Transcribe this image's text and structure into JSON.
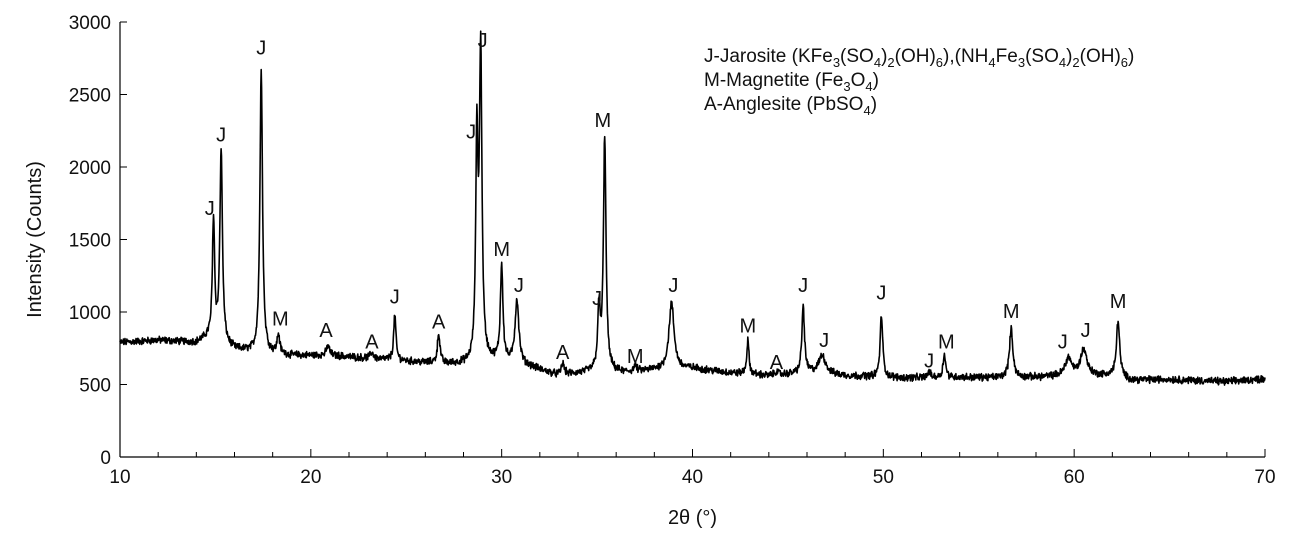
{
  "chart_data": {
    "type": "line",
    "xlabel": "2θ (°)",
    "ylabel": "Intensity (Counts)",
    "xlim": [
      10,
      70
    ],
    "ylim": [
      0,
      3000
    ],
    "x_ticks": [
      10,
      20,
      30,
      40,
      50,
      60,
      70
    ],
    "y_ticks": [
      0,
      500,
      1000,
      1500,
      2000,
      2500,
      3000
    ],
    "grid": false,
    "legend_position": "top-right",
    "line_color": "#000000",
    "legend": [
      {
        "runs": [
          [
            "J-Jarosite (KFe",
            "n"
          ],
          [
            "3",
            "sub"
          ],
          [
            "(SO",
            "n"
          ],
          [
            "4",
            "sub"
          ],
          [
            ")",
            "n"
          ],
          [
            "2",
            "sub"
          ],
          [
            "(OH)",
            "n"
          ],
          [
            "6",
            "sub"
          ],
          [
            "),(NH",
            "n"
          ],
          [
            "4",
            "sub"
          ],
          [
            "Fe",
            "n"
          ],
          [
            "3",
            "sub"
          ],
          [
            "(SO",
            "n"
          ],
          [
            "4",
            "sub"
          ],
          [
            ")",
            "n"
          ],
          [
            "2",
            "sub"
          ],
          [
            "(OH)",
            "n"
          ],
          [
            "6",
            "sub"
          ],
          [
            ")",
            "n"
          ]
        ]
      },
      {
        "runs": [
          [
            "M-Magnetite (Fe",
            "n"
          ],
          [
            "3",
            "sub"
          ],
          [
            "O",
            "n"
          ],
          [
            "4",
            "sub"
          ],
          [
            ")",
            "n"
          ]
        ]
      },
      {
        "runs": [
          [
            "A-Anglesite (PbSO",
            "n"
          ],
          [
            "4",
            "sub"
          ],
          [
            ")",
            "n"
          ]
        ]
      }
    ],
    "baseline": [
      [
        10,
        790
      ],
      [
        12,
        805
      ],
      [
        14,
        790
      ],
      [
        14.6,
        820
      ],
      [
        16,
        740
      ],
      [
        17,
        720
      ],
      [
        19,
        700
      ],
      [
        21,
        700
      ],
      [
        23,
        680
      ],
      [
        25,
        660
      ],
      [
        27,
        640
      ],
      [
        28.2,
        640
      ],
      [
        29.5,
        660
      ],
      [
        31.5,
        620
      ],
      [
        33,
        560
      ],
      [
        35,
        590
      ],
      [
        36.5,
        580
      ],
      [
        38,
        600
      ],
      [
        40,
        610
      ],
      [
        42,
        580
      ],
      [
        44,
        560
      ],
      [
        46,
        580
      ],
      [
        48,
        560
      ],
      [
        51,
        545
      ],
      [
        54,
        550
      ],
      [
        57,
        545
      ],
      [
        60,
        560
      ],
      [
        62,
        560
      ],
      [
        63,
        530
      ],
      [
        65,
        535
      ],
      [
        68,
        520
      ],
      [
        70,
        540
      ]
    ],
    "peaks": [
      {
        "x": 14.9,
        "y": 1630,
        "w": 0.07
      },
      {
        "x": 15.3,
        "y": 2110,
        "w": 0.08
      },
      {
        "x": 17.4,
        "y": 2680,
        "w": 0.08
      },
      {
        "x": 18.3,
        "y": 840,
        "w": 0.08
      },
      {
        "x": 20.9,
        "y": 770,
        "w": 0.09
      },
      {
        "x": 23.2,
        "y": 720,
        "w": 0.1
      },
      {
        "x": 24.4,
        "y": 980,
        "w": 0.07
      },
      {
        "x": 26.7,
        "y": 850,
        "w": 0.08
      },
      {
        "x": 28.7,
        "y": 2120,
        "w": 0.07
      },
      {
        "x": 28.9,
        "y": 2760,
        "w": 0.08
      },
      {
        "x": 30.0,
        "y": 1320,
        "w": 0.08
      },
      {
        "x": 30.8,
        "y": 1080,
        "w": 0.12
      },
      {
        "x": 33.2,
        "y": 640,
        "w": 0.1
      },
      {
        "x": 35.1,
        "y": 1000,
        "w": 0.08
      },
      {
        "x": 35.4,
        "y": 2200,
        "w": 0.08
      },
      {
        "x": 37.0,
        "y": 630,
        "w": 0.08
      },
      {
        "x": 38.9,
        "y": 1060,
        "w": 0.16
      },
      {
        "x": 42.9,
        "y": 800,
        "w": 0.07
      },
      {
        "x": 44.4,
        "y": 590,
        "w": 0.1
      },
      {
        "x": 45.8,
        "y": 1040,
        "w": 0.08
      },
      {
        "x": 46.8,
        "y": 700,
        "w": 0.22
      },
      {
        "x": 49.9,
        "y": 980,
        "w": 0.08
      },
      {
        "x": 52.4,
        "y": 590,
        "w": 0.08
      },
      {
        "x": 53.2,
        "y": 710,
        "w": 0.08
      },
      {
        "x": 56.7,
        "y": 880,
        "w": 0.11
      },
      {
        "x": 59.7,
        "y": 680,
        "w": 0.2
      },
      {
        "x": 60.5,
        "y": 740,
        "w": 0.2
      },
      {
        "x": 62.3,
        "y": 940,
        "w": 0.1
      }
    ],
    "annotations": [
      {
        "text": "J",
        "x": 14.7,
        "y": 1640
      },
      {
        "text": "J",
        "x": 15.3,
        "y": 2150
      },
      {
        "text": "J",
        "x": 17.4,
        "y": 2750
      },
      {
        "text": "M",
        "x": 18.4,
        "y": 880
      },
      {
        "text": "A",
        "x": 20.8,
        "y": 800
      },
      {
        "text": "A",
        "x": 23.2,
        "y": 720
      },
      {
        "text": "J",
        "x": 24.4,
        "y": 1030
      },
      {
        "text": "A",
        "x": 26.7,
        "y": 860
      },
      {
        "text": "J",
        "x": 28.4,
        "y": 2170
      },
      {
        "text": "J",
        "x": 29.0,
        "y": 2800
      },
      {
        "text": "M",
        "x": 30.0,
        "y": 1360
      },
      {
        "text": "J",
        "x": 30.9,
        "y": 1110
      },
      {
        "text": "A",
        "x": 33.2,
        "y": 650
      },
      {
        "text": "J",
        "x": 35.0,
        "y": 1020
      },
      {
        "text": "M",
        "x": 35.3,
        "y": 2250
      },
      {
        "text": "M",
        "x": 37.0,
        "y": 620
      },
      {
        "text": "J",
        "x": 39.0,
        "y": 1110
      },
      {
        "text": "M",
        "x": 42.9,
        "y": 830
      },
      {
        "text": "A",
        "x": 44.4,
        "y": 580
      },
      {
        "text": "J",
        "x": 45.8,
        "y": 1110
      },
      {
        "text": "J",
        "x": 46.9,
        "y": 730
      },
      {
        "text": "J",
        "x": 49.9,
        "y": 1060
      },
      {
        "text": "J",
        "x": 52.4,
        "y": 590
      },
      {
        "text": "M",
        "x": 53.3,
        "y": 720
      },
      {
        "text": "M",
        "x": 56.7,
        "y": 930
      },
      {
        "text": "J",
        "x": 59.4,
        "y": 720
      },
      {
        "text": "J",
        "x": 60.6,
        "y": 800
      },
      {
        "text": "M",
        "x": 62.3,
        "y": 1000
      }
    ]
  }
}
